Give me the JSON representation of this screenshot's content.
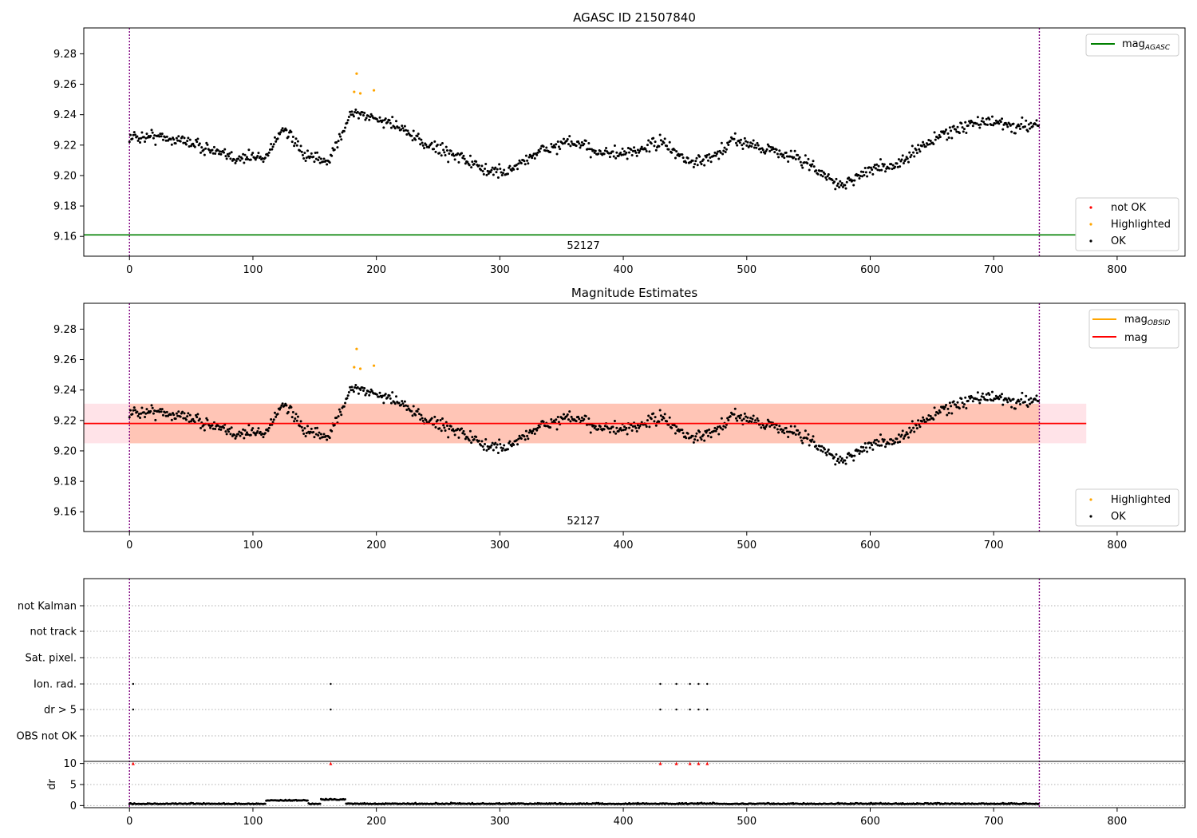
{
  "chart_data": [
    {
      "type": "scatter",
      "title": "AGASC ID 21507840",
      "annotation": "52127",
      "xlim": [
        -37,
        855
      ],
      "ylim": [
        9.147,
        9.297
      ],
      "xticks": [
        "0",
        "100",
        "200",
        "300",
        "400",
        "500",
        "600",
        "700",
        "800"
      ],
      "yticks": [
        "9.16",
        "9.18",
        "9.20",
        "9.22",
        "9.24",
        "9.26",
        "9.28"
      ],
      "vlines": [
        0,
        737
      ],
      "hline": {
        "name": "mag",
        "sub": "AGASC",
        "value": 9.161,
        "color": "#008000"
      },
      "legend_line": {
        "name": "mag",
        "sub": "AGASC",
        "color": "#008000"
      },
      "legend_points": [
        {
          "name": "not OK",
          "color": "#ff0000"
        },
        {
          "name": "Highlighted",
          "color": "#ffa500"
        },
        {
          "name": "OK",
          "color": "#000000"
        }
      ],
      "highlighted": [
        [
          182,
          9.255
        ],
        [
          184,
          9.267
        ],
        [
          187,
          9.254
        ],
        [
          198,
          9.256
        ]
      ]
    },
    {
      "type": "scatter",
      "title": "Magnitude Estimates",
      "annotation": "52127",
      "xlim": [
        -37,
        855
      ],
      "ylim": [
        9.147,
        9.297
      ],
      "xticks": [
        "0",
        "100",
        "200",
        "300",
        "400",
        "500",
        "600",
        "700",
        "800"
      ],
      "yticks": [
        "9.16",
        "9.18",
        "9.20",
        "9.22",
        "9.24",
        "9.26",
        "9.28"
      ],
      "vlines": [
        0,
        737
      ],
      "mag_line": {
        "name": "mag",
        "value": 9.218,
        "color": "#ff0000"
      },
      "band_outer": {
        "x0": -37,
        "x1": 775,
        "y0": 9.205,
        "y1": 9.231,
        "color": "#ffc0cb"
      },
      "band_inner": {
        "x0": 0,
        "x1": 737,
        "y0": 9.205,
        "y1": 9.231,
        "color": "#ffa07a"
      },
      "legend_line": [
        {
          "name": "mag",
          "sub": "OBSID",
          "color": "#ffa500"
        },
        {
          "name": "mag",
          "sub": "",
          "color": "#ff0000"
        }
      ],
      "legend_points": [
        {
          "name": "Highlighted",
          "color": "#ffa500"
        },
        {
          "name": "OK",
          "color": "#000000"
        }
      ],
      "highlighted": [
        [
          182,
          9.255
        ],
        [
          184,
          9.267
        ],
        [
          187,
          9.254
        ],
        [
          198,
          9.256
        ]
      ]
    },
    {
      "type": "scatter",
      "flag_labels": [
        "not Kalman",
        "not track",
        "Sat. pixel.",
        "Ion. rad.",
        "dr > 5",
        "OBS not OK"
      ],
      "flag_points": {
        "Ion. rad.": [
          3,
          163,
          430,
          443,
          454,
          461,
          468
        ],
        "dr > 5": [
          3,
          163,
          430,
          443,
          454,
          461,
          468
        ]
      },
      "dr_ylabel": "dr",
      "dr_yticks": [
        "0",
        "5",
        "10"
      ],
      "dr_ylim": [
        -0.5,
        10.5
      ],
      "dr_clipped": [
        3,
        163,
        430,
        443,
        454,
        461,
        468
      ],
      "xlim": [
        -37,
        855
      ],
      "xticks": [
        "0",
        "100",
        "200",
        "300",
        "400",
        "500",
        "600",
        "700",
        "800"
      ],
      "vlines": [
        0,
        737
      ]
    }
  ]
}
